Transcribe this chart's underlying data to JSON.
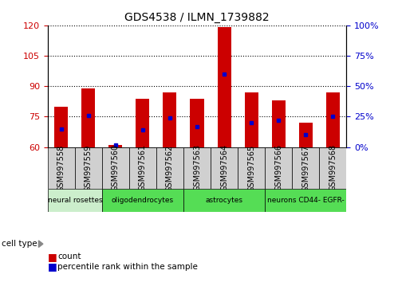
{
  "title": "GDS4538 / ILMN_1739882",
  "samples": [
    "GSM997558",
    "GSM997559",
    "GSM997560",
    "GSM997561",
    "GSM997562",
    "GSM997563",
    "GSM997564",
    "GSM997565",
    "GSM997566",
    "GSM997567",
    "GSM997568"
  ],
  "counts": [
    80,
    89,
    61,
    84,
    87,
    84,
    119,
    87,
    83,
    72,
    87
  ],
  "percentile_ranks": [
    15,
    26,
    2,
    14,
    24,
    17,
    60,
    20,
    22,
    10,
    25
  ],
  "ylim_left": [
    60,
    120
  ],
  "yticks_left": [
    60,
    75,
    90,
    105,
    120
  ],
  "ylim_right": [
    0,
    100
  ],
  "yticks_right": [
    0,
    25,
    50,
    75,
    100
  ],
  "right_tick_labels": [
    "0%",
    "25%",
    "50%",
    "75%",
    "100%"
  ],
  "bar_color": "#cc0000",
  "dot_color": "#0000cc",
  "cell_groups": [
    {
      "label": "neural rosettes",
      "start": 0,
      "end": 1,
      "color": "#cceecc"
    },
    {
      "label": "oligodendrocytes",
      "start": 2,
      "end": 4,
      "color": "#55dd55"
    },
    {
      "label": "astrocytes",
      "start": 5,
      "end": 7,
      "color": "#55dd55"
    },
    {
      "label": "neurons CD44- EGFR-",
      "start": 8,
      "end": 10,
      "color": "#55dd55"
    }
  ],
  "legend_count_label": "count",
  "legend_pct_label": "percentile rank within the sample",
  "bar_width": 0.5,
  "left_tick_color": "#cc0000",
  "right_tick_color": "#0000cc",
  "xtick_box_color": "#d0d0d0",
  "xtick_fontsize": 7,
  "bar_bottom": 60
}
